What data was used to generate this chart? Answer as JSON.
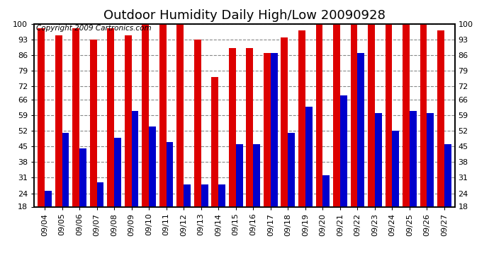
{
  "title": "Outdoor Humidity Daily High/Low 20090928",
  "copyright": "Copyright 2009 Cartronics.com",
  "dates": [
    "09/04",
    "09/05",
    "09/06",
    "09/07",
    "09/08",
    "09/09",
    "09/10",
    "09/11",
    "09/12",
    "09/13",
    "09/14",
    "09/15",
    "09/16",
    "09/17",
    "09/18",
    "09/19",
    "09/20",
    "09/21",
    "09/22",
    "09/23",
    "09/24",
    "09/25",
    "09/26",
    "09/27"
  ],
  "highs": [
    98,
    95,
    98,
    93,
    98,
    95,
    100,
    100,
    100,
    93,
    76,
    89,
    89,
    87,
    94,
    97,
    100,
    100,
    100,
    100,
    100,
    100,
    100,
    97
  ],
  "lows": [
    25,
    51,
    44,
    29,
    49,
    61,
    54,
    47,
    28,
    28,
    28,
    46,
    46,
    87,
    51,
    63,
    32,
    68,
    87,
    60,
    52,
    61,
    60,
    46
  ],
  "bar_color_high": "#dd0000",
  "bar_color_low": "#0000cc",
  "background_color": "#ffffff",
  "plot_background": "#ffffff",
  "grid_color": "#888888",
  "yticks": [
    18,
    24,
    31,
    38,
    45,
    52,
    59,
    66,
    72,
    79,
    86,
    93,
    100
  ],
  "ymin": 18,
  "ymax": 100,
  "title_fontsize": 13,
  "tick_fontsize": 8,
  "copyright_fontsize": 7.5
}
